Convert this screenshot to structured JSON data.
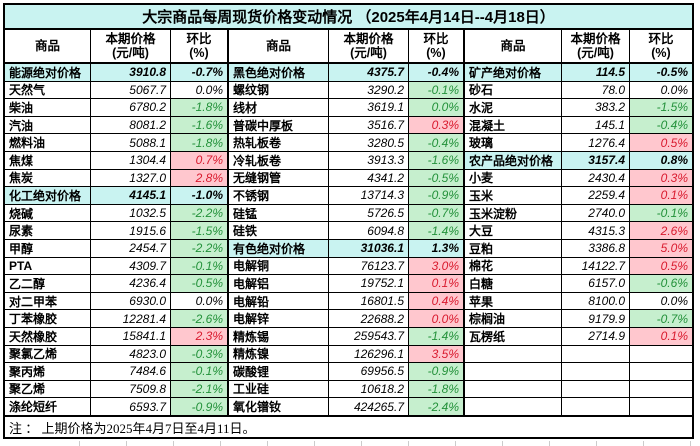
{
  "title": "大宗商品每周现货价格变动情况 （2025年4月14日--4月18日）",
  "column_headers": {
    "commodity": "商品",
    "price": "本期价格",
    "price_unit": "(元/吨)",
    "pct": "环比",
    "pct_unit": "(%)"
  },
  "footnote": "注 ： 上期价格为2025年4月7日至4月11日。",
  "colors": {
    "category_bg": "#C9F3F1",
    "down_bg": "#C6EFCE",
    "down_text": "#23913A",
    "up_bg": "#FFC7CE",
    "up_text": "#D91A2E"
  },
  "groups": [
    {
      "rows": [
        {
          "name": "能源绝对价格",
          "price": "3910.8",
          "pct": "-0.7%",
          "type": "category"
        },
        {
          "name": "天然气",
          "price": "5067.7",
          "pct": "0.0%",
          "type": "item",
          "trend": "flat"
        },
        {
          "name": "柴油",
          "price": "6780.2",
          "pct": "-1.8%",
          "type": "item",
          "trend": "down"
        },
        {
          "name": "汽油",
          "price": "8081.2",
          "pct": "-1.6%",
          "type": "item",
          "trend": "down"
        },
        {
          "name": "燃料油",
          "price": "5088.1",
          "pct": "-1.8%",
          "type": "item",
          "trend": "down"
        },
        {
          "name": "焦煤",
          "price": "1304.4",
          "pct": "0.7%",
          "type": "item",
          "trend": "up"
        },
        {
          "name": "焦炭",
          "price": "1327.0",
          "pct": "2.8%",
          "type": "item",
          "trend": "up"
        },
        {
          "name": "化工绝对价格",
          "price": "4145.1",
          "pct": "-1.0%",
          "type": "category"
        },
        {
          "name": "烧碱",
          "price": "1032.5",
          "pct": "-2.2%",
          "type": "item",
          "trend": "down"
        },
        {
          "name": "尿素",
          "price": "1915.6",
          "pct": "-1.5%",
          "type": "item",
          "trend": "down"
        },
        {
          "name": "甲醇",
          "price": "2454.7",
          "pct": "-2.2%",
          "type": "item",
          "trend": "down"
        },
        {
          "name": "PTA",
          "price": "4309.7",
          "pct": "-0.1%",
          "type": "item",
          "trend": "down"
        },
        {
          "name": "乙二醇",
          "price": "4236.4",
          "pct": "-0.5%",
          "type": "item",
          "trend": "down"
        },
        {
          "name": "对二甲苯",
          "price": "6930.0",
          "pct": "0.0%",
          "type": "item",
          "trend": "flat"
        },
        {
          "name": "丁苯橡胶",
          "price": "12281.4",
          "pct": "-2.6%",
          "type": "item",
          "trend": "down"
        },
        {
          "name": "天然橡胶",
          "price": "15841.1",
          "pct": "2.3%",
          "type": "item",
          "trend": "up"
        },
        {
          "name": "聚氯乙烯",
          "price": "4823.0",
          "pct": "-0.3%",
          "type": "item",
          "trend": "down"
        },
        {
          "name": "聚丙烯",
          "price": "7484.6",
          "pct": "-0.1%",
          "type": "item",
          "trend": "down"
        },
        {
          "name": "聚乙烯",
          "price": "7509.8",
          "pct": "-2.1%",
          "type": "item",
          "trend": "down"
        },
        {
          "name": "涤纶短纤",
          "price": "6593.7",
          "pct": "-0.9%",
          "type": "item",
          "trend": "down"
        }
      ]
    },
    {
      "rows": [
        {
          "name": "黑色绝对价格",
          "price": "4375.7",
          "pct": "-0.4%",
          "type": "category"
        },
        {
          "name": "螺纹钢",
          "price": "3290.2",
          "pct": "-0.1%",
          "type": "item",
          "trend": "down"
        },
        {
          "name": "线材",
          "price": "3619.1",
          "pct": "0.0%",
          "type": "item",
          "trend": "down"
        },
        {
          "name": "普碳中厚板",
          "price": "3516.7",
          "pct": "0.3%",
          "type": "item",
          "trend": "up"
        },
        {
          "name": "热轧板卷",
          "price": "3280.5",
          "pct": "-0.4%",
          "type": "item",
          "trend": "down"
        },
        {
          "name": "冷轧板卷",
          "price": "3913.3",
          "pct": "-1.6%",
          "type": "item",
          "trend": "down"
        },
        {
          "name": "无缝钢管",
          "price": "4341.2",
          "pct": "-0.5%",
          "type": "item",
          "trend": "down"
        },
        {
          "name": "不锈钢",
          "price": "13714.3",
          "pct": "-0.9%",
          "type": "item",
          "trend": "down"
        },
        {
          "name": "硅锰",
          "price": "5726.5",
          "pct": "-0.7%",
          "type": "item",
          "trend": "down"
        },
        {
          "name": "硅铁",
          "price": "6094.8",
          "pct": "-1.4%",
          "type": "item",
          "trend": "down"
        },
        {
          "name": "有色绝对价格",
          "price": "31036.1",
          "pct": "1.3%",
          "type": "category"
        },
        {
          "name": "电解铜",
          "price": "76123.7",
          "pct": "3.0%",
          "type": "item",
          "trend": "up"
        },
        {
          "name": "电解铝",
          "price": "19752.1",
          "pct": "0.1%",
          "type": "item",
          "trend": "up"
        },
        {
          "name": "电解铅",
          "price": "16801.5",
          "pct": "0.4%",
          "type": "item",
          "trend": "up"
        },
        {
          "name": "电解锌",
          "price": "22688.2",
          "pct": "0.0%",
          "type": "item",
          "trend": "up"
        },
        {
          "name": "精炼锡",
          "price": "259543.7",
          "pct": "-1.4%",
          "type": "item",
          "trend": "down"
        },
        {
          "name": "精炼镍",
          "price": "126296.1",
          "pct": "3.5%",
          "type": "item",
          "trend": "up"
        },
        {
          "name": "碳酸锂",
          "price": "69956.5",
          "pct": "-0.9%",
          "type": "item",
          "trend": "down"
        },
        {
          "name": "工业硅",
          "price": "10618.2",
          "pct": "-1.8%",
          "type": "item",
          "trend": "down"
        },
        {
          "name": "氧化镨钕",
          "price": "424265.7",
          "pct": "-2.4%",
          "type": "item",
          "trend": "down"
        }
      ]
    },
    {
      "rows": [
        {
          "name": "矿产绝对价格",
          "price": "114.5",
          "pct": "-0.5%",
          "type": "category"
        },
        {
          "name": "砂石",
          "price": "78.0",
          "pct": "0.0%",
          "type": "item",
          "trend": "flat"
        },
        {
          "name": "水泥",
          "price": "383.2",
          "pct": "-1.5%",
          "type": "item",
          "trend": "down"
        },
        {
          "name": "混凝土",
          "price": "145.1",
          "pct": "-0.4%",
          "type": "item",
          "trend": "down"
        },
        {
          "name": "玻璃",
          "price": "1276.4",
          "pct": "0.5%",
          "type": "item",
          "trend": "up"
        },
        {
          "name": "农产品绝对价格",
          "price": "3157.4",
          "pct": "0.8%",
          "type": "category"
        },
        {
          "name": "小麦",
          "price": "2430.4",
          "pct": "0.3%",
          "type": "item",
          "trend": "up"
        },
        {
          "name": "玉米",
          "price": "2259.4",
          "pct": "0.1%",
          "type": "item",
          "trend": "up"
        },
        {
          "name": "玉米淀粉",
          "price": "2740.0",
          "pct": "-0.1%",
          "type": "item",
          "trend": "down"
        },
        {
          "name": "大豆",
          "price": "4315.3",
          "pct": "2.6%",
          "type": "item",
          "trend": "up"
        },
        {
          "name": "豆粕",
          "price": "3386.8",
          "pct": "5.0%",
          "type": "item",
          "trend": "up"
        },
        {
          "name": "棉花",
          "price": "14122.7",
          "pct": "0.5%",
          "type": "item",
          "trend": "up"
        },
        {
          "name": "白糖",
          "price": "6157.0",
          "pct": "-0.6%",
          "type": "item",
          "trend": "down"
        },
        {
          "name": "苹果",
          "price": "8100.0",
          "pct": "0.0%",
          "type": "item",
          "trend": "flat"
        },
        {
          "name": "棕榈油",
          "price": "9179.9",
          "pct": "-0.7%",
          "type": "item",
          "trend": "down"
        },
        {
          "name": "瓦楞纸",
          "price": "2714.9",
          "pct": "0.1%",
          "type": "item",
          "trend": "up"
        },
        {
          "name": "",
          "price": "",
          "pct": "",
          "type": "empty"
        },
        {
          "name": "",
          "price": "",
          "pct": "",
          "type": "empty"
        },
        {
          "name": "",
          "price": "",
          "pct": "",
          "type": "empty"
        },
        {
          "name": "",
          "price": "",
          "pct": "",
          "type": "empty"
        }
      ]
    }
  ]
}
